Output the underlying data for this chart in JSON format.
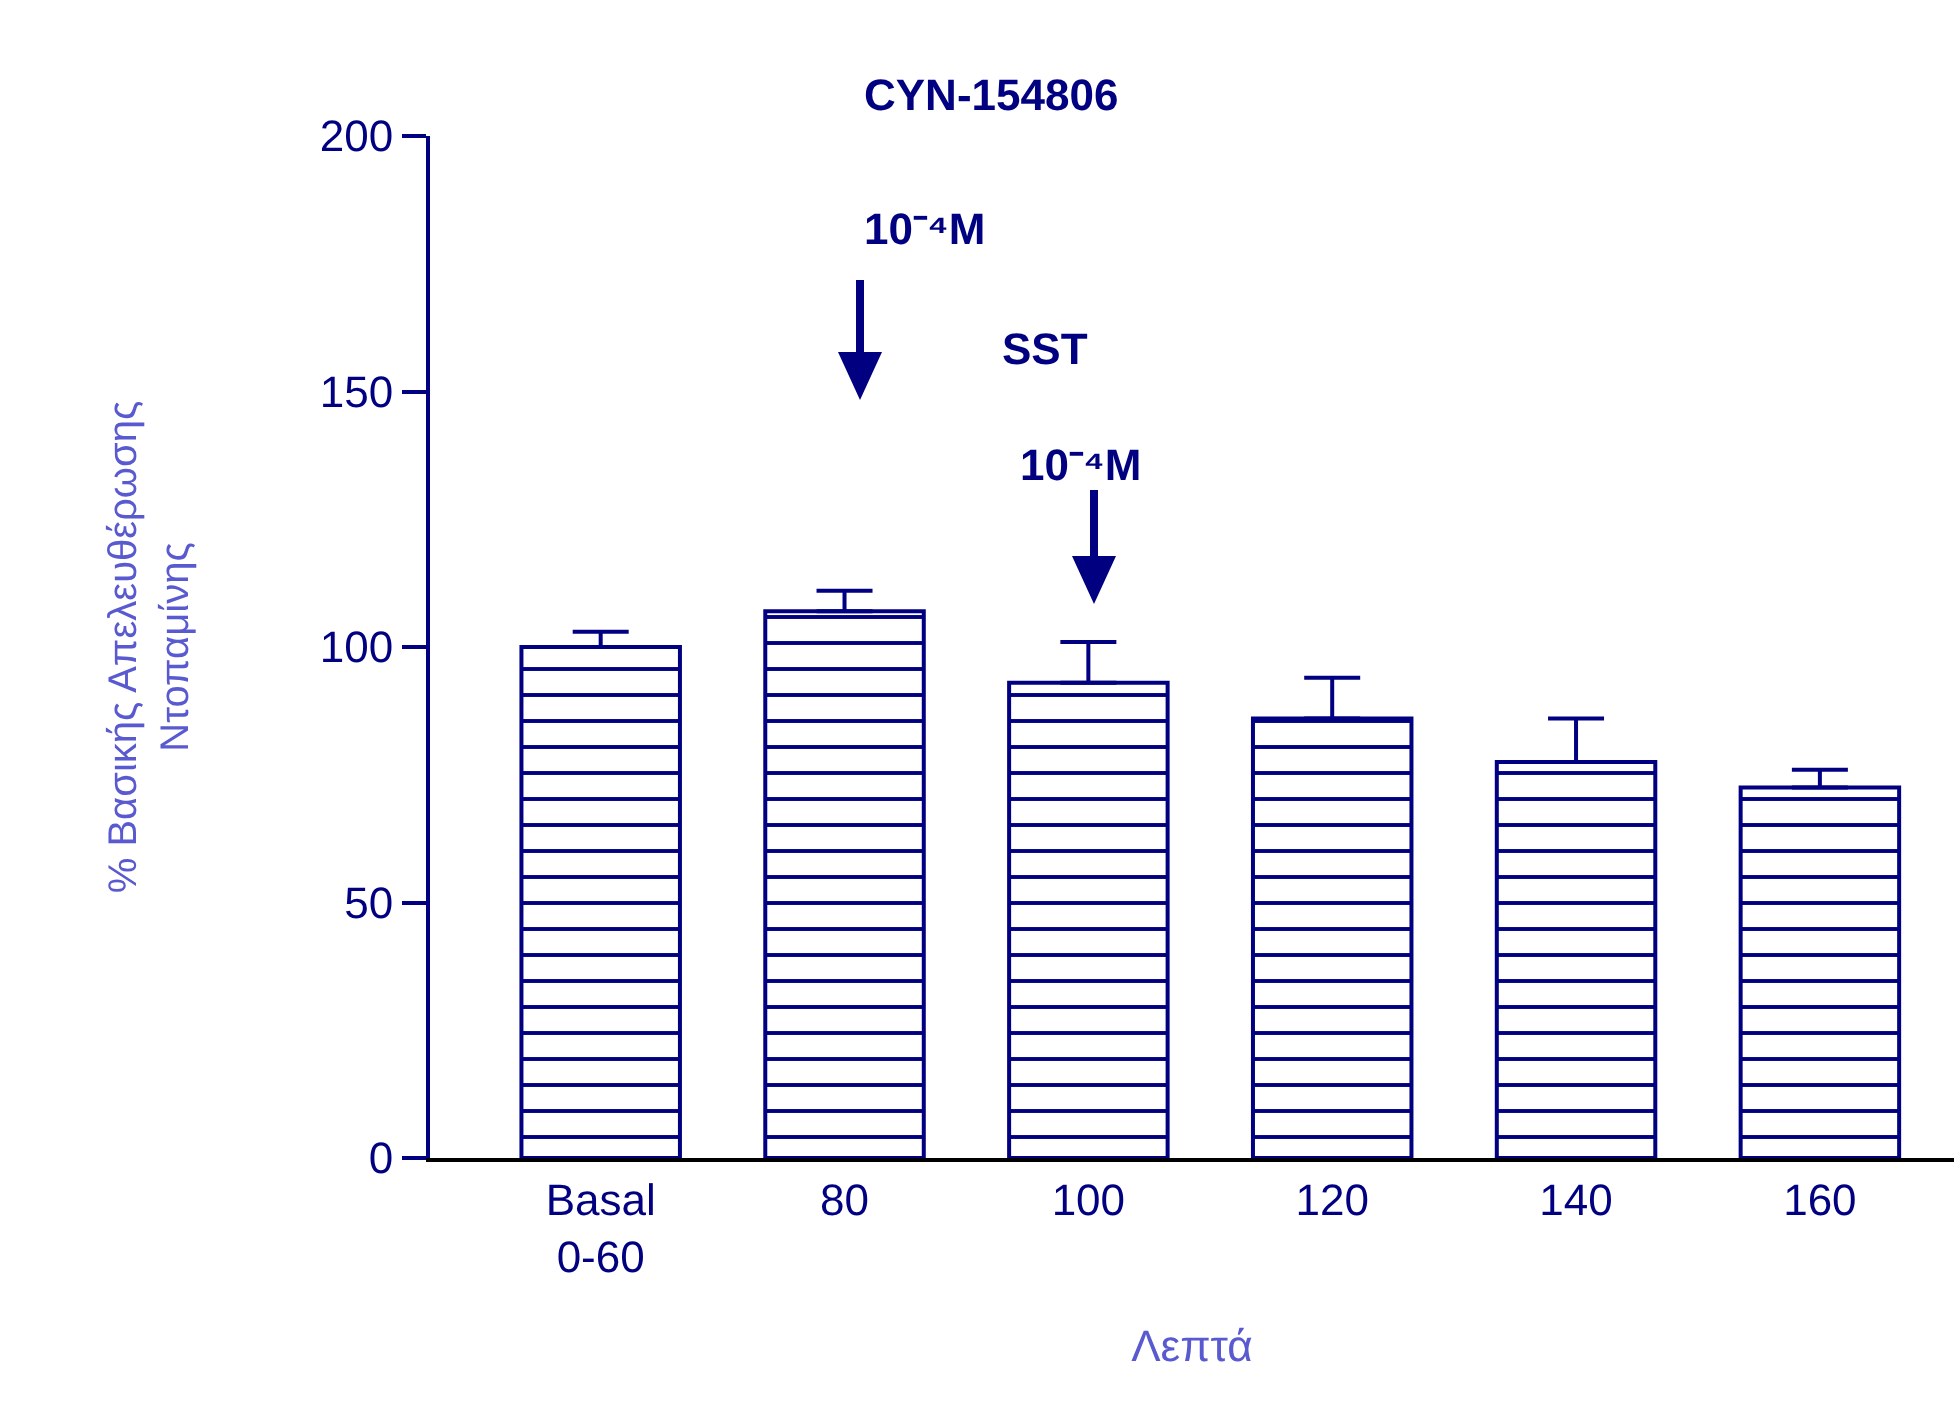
{
  "chart_data": {
    "type": "bar",
    "xlabel": "Λεπτά",
    "ylabel": "% Βασικής Απελευθέρωσης\nΝτοπαμίνης",
    "categories": [
      "Basal\n0-60",
      "80",
      "100",
      "120",
      "140",
      "160"
    ],
    "values": [
      100,
      107,
      93,
      86,
      77.5,
      72.5
    ],
    "errors": [
      [
        100,
        103
      ],
      [
        107,
        111
      ],
      [
        93,
        101
      ],
      [
        86,
        94
      ],
      [
        77.5,
        86
      ],
      [
        72.5,
        76
      ]
    ],
    "color": "#000080",
    "ylim": [
      0,
      200
    ],
    "yticks": [
      0,
      50,
      100,
      150,
      200
    ],
    "grid": false,
    "legend": false,
    "annotations": [
      "CYN-154806",
      "10⁻⁴M",
      "SST",
      "10⁻⁴M"
    ]
  }
}
